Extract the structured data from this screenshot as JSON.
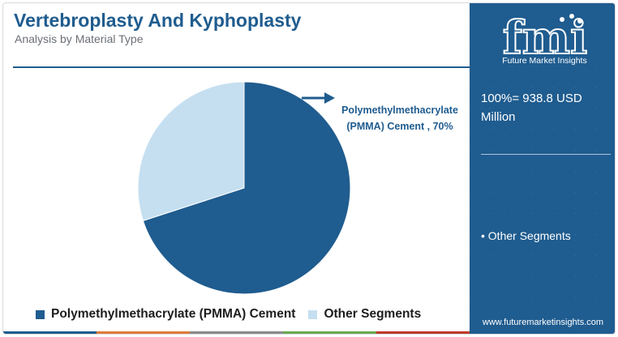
{
  "header": {
    "title": "Vertebroplasty And Kyphoplasty",
    "subtitle": "Analysis by Material Type"
  },
  "callout": {
    "text": "Polymethylmethacrylate (PMMA) Cement , 70%"
  },
  "legend": {
    "items": [
      {
        "label": "Polymethylmethacrylate (PMMA) Cement",
        "color": "#1f5c8f"
      },
      {
        "label": "Other Segments",
        "color": "#c5dff0"
      }
    ]
  },
  "side_panel": {
    "logo_text": "fmi",
    "logo_subtitle": "Future Market Insights",
    "total_text": "100%= 938.8 USD Million",
    "segment_note": "• Other Segments",
    "website": "www.futuremarketinsights.com"
  },
  "colors": {
    "brand": "#1f5c8f",
    "light": "#c5dff0",
    "strip": [
      "#1f5c8f",
      "#e07b39",
      "#8a8a8a",
      "#6aa84f",
      "#c0392b"
    ]
  },
  "chart_data": {
    "type": "pie",
    "slices": [
      {
        "label": "Polymethylmethacrylate (PMMA) Cement",
        "value": 70,
        "color": "#1f5c8f"
      },
      {
        "label": "Other Segments",
        "value": 30,
        "color": "#c5dff0"
      }
    ],
    "title": "Vertebroplasty And Kyphoplasty",
    "subtitle": "Analysis by Material Type",
    "legend_position": "bottom"
  }
}
